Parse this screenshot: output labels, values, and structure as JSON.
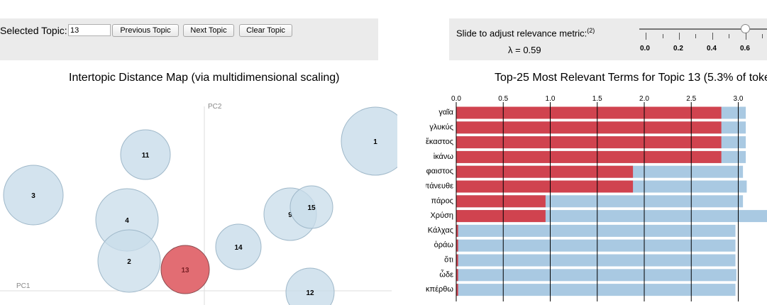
{
  "topic_controls": {
    "label": "Selected Topic:",
    "value": "13",
    "prev_label": "Previous Topic",
    "next_label": "Next Topic",
    "clear_label": "Clear Topic"
  },
  "relevance": {
    "label": "Slide to adjust relevance metric:",
    "superscript": "(2)",
    "lambda_text": "λ = 0.59",
    "lambda": 0.59,
    "ticks": [
      "0.0",
      "0.2",
      "0.4",
      "0.6"
    ]
  },
  "map": {
    "title": "Intertopic Distance Map (via multidimensional scaling)",
    "pc1_label": "PC1",
    "pc2_label": "PC2",
    "selected_color": "#e26d73",
    "default_color": "#c8dcea",
    "topics": [
      {
        "id": "1"
      },
      {
        "id": "2"
      },
      {
        "id": "3"
      },
      {
        "id": "4"
      },
      {
        "id": "9"
      },
      {
        "id": "11"
      },
      {
        "id": "12"
      },
      {
        "id": "13",
        "selected": true
      },
      {
        "id": "14"
      },
      {
        "id": "15"
      }
    ]
  },
  "chart_data": {
    "type": "bar",
    "title": "Top-25 Most Relevant Terms for Topic 13 (5.3% of toke",
    "x_ticks": [
      "0.0",
      "0.5",
      "1.0",
      "1.5",
      "2.0",
      "2.5",
      "3.0"
    ],
    "xlim": [
      0,
      3.3
    ],
    "colors": {
      "topic": "#d0434f",
      "overall": "#a9c9e2"
    },
    "categories": [
      "γαῖα",
      "γλυκύς",
      "ἕκαστος",
      "ἱκάνω",
      "Ἥφαιστος",
      "ἀπάνευθε",
      "πάρος",
      "Χρύση",
      "Κάλχας",
      "ὁράω",
      "ὅτι",
      "ὧδε",
      "ἐκπέρθω"
    ],
    "series": [
      {
        "values": [
          3.08,
          3.08,
          3.08,
          3.08,
          3.05,
          3.09,
          3.05,
          3.35,
          2.97,
          2.97,
          2.97,
          2.98,
          2.97
        ]
      },
      {
        "values": [
          2.82,
          2.82,
          2.82,
          2.82,
          1.88,
          1.88,
          0.95,
          0.95,
          0.02,
          0.02,
          0.02,
          0.02,
          0.02
        ]
      }
    ]
  }
}
